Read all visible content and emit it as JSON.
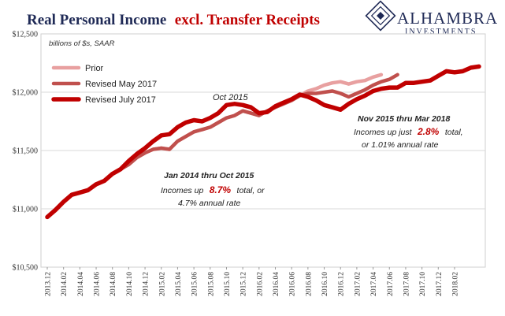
{
  "chart_data": {
    "type": "line",
    "title": "Real Personal Income",
    "title_highlight": "excl. Transfer Receipts",
    "units_note": "billions of $s, SAAR",
    "ylim": [
      10500,
      12500
    ],
    "yticks": [
      "$10,500",
      "$11,000",
      "$11,500",
      "$12,000",
      "$12,500"
    ],
    "ytick_values": [
      10500,
      11000,
      11500,
      12000,
      12500
    ],
    "xtick_labels": [
      "2013.12",
      "2014.02",
      "2014.04",
      "2014.06",
      "2014.08",
      "2014.10",
      "2014.12",
      "2015.02",
      "2015.04",
      "2015.06",
      "2015.08",
      "2015.10",
      "2015.12",
      "2016.02",
      "2016.04",
      "2016.06",
      "2016.08",
      "2016.10",
      "2016.12",
      "2017.02",
      "2017.04",
      "2017.06",
      "2017.08",
      "2017.10",
      "2017.12",
      "2018.02"
    ],
    "grid": "horizontal",
    "legend_position": "top-left",
    "series": [
      {
        "name": "Prior",
        "color": "#e8a0a0",
        "start": "2013.12",
        "values": [
          10930,
          10990,
          11060,
          11120,
          11140,
          11160,
          11210,
          11240,
          11300,
          11340,
          11380,
          11440,
          11480,
          11510,
          11520,
          11510,
          11580,
          11620,
          11660,
          11680,
          11700,
          11740,
          11780,
          11800,
          11840,
          11820,
          11800,
          11840,
          11870,
          11900,
          11930,
          11970,
          12010,
          12030,
          12060,
          12080,
          12090,
          12070,
          12090,
          12100,
          12130,
          12150
        ]
      },
      {
        "name": "Revised May 2017",
        "color": "#c0504d",
        "start": "2013.12",
        "values": [
          10930,
          10990,
          11060,
          11120,
          11140,
          11160,
          11210,
          11240,
          11300,
          11340,
          11380,
          11440,
          11480,
          11510,
          11520,
          11510,
          11580,
          11620,
          11660,
          11680,
          11700,
          11740,
          11780,
          11800,
          11840,
          11820,
          11800,
          11840,
          11870,
          11900,
          11930,
          11970,
          11990,
          11990,
          12000,
          12010,
          11990,
          11960,
          11990,
          12020,
          12060,
          12090,
          12110,
          12150
        ]
      },
      {
        "name": "Revised July 2017",
        "color": "#c00000",
        "start": "2013.12",
        "values": [
          10930,
          10990,
          11060,
          11120,
          11140,
          11160,
          11210,
          11240,
          11300,
          11340,
          11410,
          11470,
          11520,
          11580,
          11630,
          11640,
          11700,
          11740,
          11760,
          11750,
          11780,
          11820,
          11890,
          11900,
          11890,
          11870,
          11820,
          11830,
          11880,
          11910,
          11940,
          11980,
          11960,
          11930,
          11890,
          11870,
          11850,
          11900,
          11940,
          11970,
          12010,
          12030,
          12040,
          12040,
          12080,
          12080,
          12090,
          12100,
          12140,
          12180,
          12170,
          12180,
          12210,
          12220
        ]
      }
    ],
    "annotations": {
      "peak": "Oct 2015",
      "left_title": "Jan 2014 thru Oct 2015",
      "left_line1_pre": "Incomes up",
      "left_line1_hi": "8.7%",
      "left_line1_post": "total, or",
      "left_line2": "4.7% annual rate",
      "right_title": "Nov 2015 thru Mar 2018",
      "right_line1_pre": "Incomes up just",
      "right_line1_hi": "2.8%",
      "right_line1_post": "total,",
      "right_line2": "or 1.01% annual rate",
      "highlight_color": "#c00000"
    }
  },
  "logo": {
    "name": "ALHAMBRA",
    "sub": "INVESTMENTS"
  },
  "colors": {
    "title": "#1f2a56",
    "accent": "#c00000"
  }
}
